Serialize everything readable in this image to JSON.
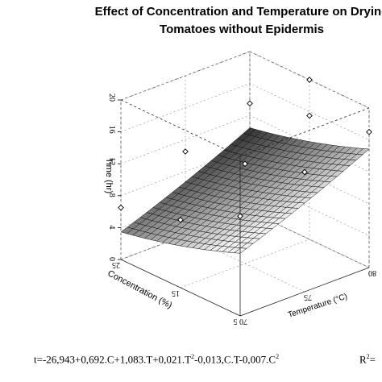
{
  "chart_data": {
    "type": "surface3d",
    "title_lines": [
      "Effect of Concentration and Temperature on Drying",
      "Tomatoes without Epidermis"
    ],
    "xlabel": "Concentration (%)",
    "ylabel": "Temperature (°C)",
    "zlabel": "Time (hr)",
    "x_ticks": [
      "5",
      "15",
      "25"
    ],
    "y_ticks": [
      "70",
      "75",
      "80"
    ],
    "z_ticks": [
      "0",
      "4",
      "8",
      "12",
      "16",
      "20"
    ],
    "xlim": [
      5,
      25
    ],
    "ylim": [
      70,
      80
    ],
    "zlim": [
      0,
      20
    ],
    "equation_parts": [
      {
        "t": "t=-26,943+0,692.C+1,083.T+0,021.T"
      },
      {
        "t": "2",
        "sup": true
      },
      {
        "t": "-0,013,C.T-0,007.C"
      },
      {
        "t": "2",
        "sup": true
      }
    ],
    "r2_parts": [
      {
        "t": "R"
      },
      {
        "t": "2",
        "sup": true
      },
      {
        "t": "="
      }
    ],
    "observed_points": [
      {
        "c": 5,
        "t": 70,
        "time": 12.5
      },
      {
        "c": 5,
        "t": 75,
        "time": 15.0
      },
      {
        "c": 5,
        "t": 80,
        "time": 17.0
      },
      {
        "c": 15,
        "t": 70,
        "time": 8.5
      },
      {
        "c": 15,
        "t": 75,
        "time": 12.5
      },
      {
        "c": 15,
        "t": 80,
        "time": 15.5
      },
      {
        "c": 15,
        "t": 80,
        "time": 20.0
      },
      {
        "c": 25,
        "t": 70,
        "time": 6.5
      },
      {
        "c": 25,
        "t": 75,
        "time": 10.5
      },
      {
        "c": 25,
        "t": 80,
        "time": 13.5
      }
    ]
  }
}
